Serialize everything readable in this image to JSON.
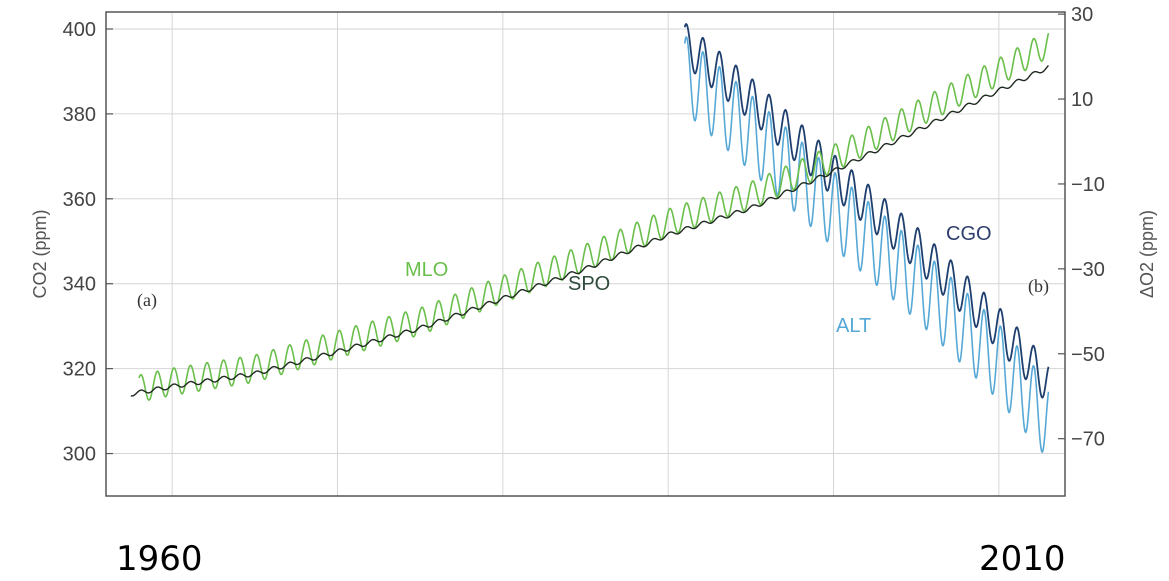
{
  "chart_data": {
    "type": "line",
    "left_axis": {
      "label": "CO2 (ppm)",
      "ticks": [
        300,
        320,
        340,
        360,
        380,
        400
      ],
      "range": [
        290,
        404
      ]
    },
    "right_axis": {
      "label": "ΔO2 (ppm)",
      "ticks": [
        30,
        10,
        -10,
        -30,
        -50,
        -70
      ],
      "range": [
        -83.5,
        30.5
      ]
    },
    "x_range": [
      1956,
      2014
    ],
    "x_gridlines": [
      1960,
      1970,
      1980,
      1990,
      2000,
      2010
    ],
    "grid": true,
    "panel_labels": [
      "(a)",
      "(b)"
    ],
    "x_labels": [
      "1960",
      "2010"
    ],
    "co2_series": [
      {
        "name": "MLO",
        "color": "#6abf4b",
        "axis": "left",
        "seasonal_amplitude": 3.2,
        "x": [
          1958,
          1960,
          1965,
          1970,
          1975,
          1980,
          1985,
          1990,
          1995,
          2000,
          2005,
          2010,
          2013
        ],
        "values": [
          315.3,
          316.9,
          320.0,
          325.7,
          331.1,
          338.7,
          346.1,
          354.4,
          360.8,
          369.5,
          379.8,
          389.9,
          396.5
        ]
      },
      {
        "name": "SPO",
        "color": "#1f2a1f",
        "axis": "left",
        "seasonal_amplitude": 0.5,
        "x": [
          1957.5,
          1960,
          1965,
          1970,
          1975,
          1980,
          1985,
          1990,
          1995,
          2000,
          2005,
          2010,
          2013
        ],
        "values": [
          314.0,
          315.8,
          318.8,
          324.0,
          329.5,
          336.5,
          343.5,
          351.5,
          357.8,
          366.5,
          376.0,
          385.5,
          391.0
        ]
      }
    ],
    "o2_series": [
      {
        "name": "CGO",
        "color": "#1f3f6e",
        "axis": "right",
        "seasonal_amplitude": 5,
        "x": [
          1991,
          1995,
          2000,
          2005,
          2010,
          2013
        ],
        "values": [
          23,
          10,
          -8,
          -25,
          -44,
          -57
        ]
      },
      {
        "name": "ALT",
        "color": "#56a8d6",
        "axis": "right",
        "seasonal_amplitude": 9,
        "x": [
          1991,
          1995,
          2000,
          2005,
          2010,
          2013
        ],
        "values": [
          16,
          2,
          -16,
          -33,
          -52,
          -66
        ]
      }
    ]
  }
}
